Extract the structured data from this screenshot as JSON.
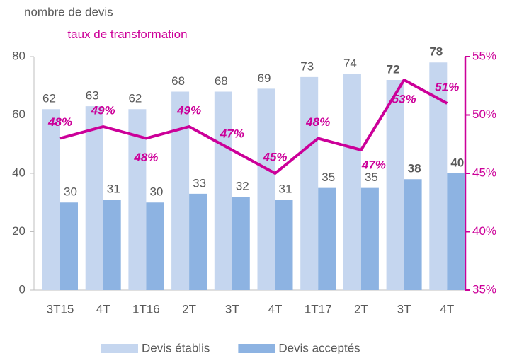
{
  "chart_data": {
    "type": "bar_line",
    "y_label": "nombre de devis",
    "y2_label": "taux de transformation",
    "categories": [
      "3T15",
      "4T",
      "1T16",
      "2T",
      "3T",
      "4T",
      "1T17",
      "2T",
      "3T",
      "4T"
    ],
    "series": [
      {
        "name": "Devis établis",
        "type": "bar",
        "color": "#c5d6ef",
        "values": [
          62,
          63,
          62,
          68,
          68,
          69,
          73,
          74,
          72,
          78
        ]
      },
      {
        "name": "Devis acceptés",
        "type": "bar",
        "color": "#8db3e2",
        "values": [
          30,
          31,
          30,
          33,
          32,
          31,
          35,
          35,
          38,
          40
        ]
      },
      {
        "type": "line",
        "axis": "y2",
        "color": "#cc0099",
        "values": [
          48,
          49,
          48,
          49,
          47,
          45,
          48,
          47,
          53,
          51
        ],
        "value_labels": [
          "48%",
          "49%",
          "48%",
          "49%",
          "47%",
          "45%",
          "48%",
          "47%",
          "53%",
          "51%"
        ]
      }
    ],
    "ylim": [
      0,
      80
    ],
    "yticks": [
      0,
      20,
      40,
      60,
      80
    ],
    "y2lim": [
      35,
      55
    ],
    "y2ticks": [
      {
        "value": 35,
        "label": "35%"
      },
      {
        "value": 40,
        "label": "40%"
      },
      {
        "value": 45,
        "label": "45%"
      },
      {
        "value": 50,
        "label": "50%"
      },
      {
        "value": 55,
        "label": "55%"
      }
    ],
    "legend": "bottom"
  }
}
